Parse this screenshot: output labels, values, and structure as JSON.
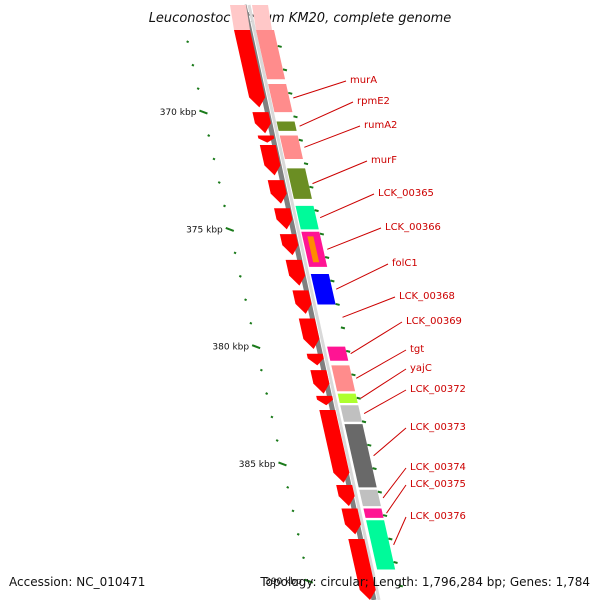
{
  "title": "Leuconostoc citreum KM20, complete genome",
  "footer": {
    "accession": "Accession: NC_010471",
    "summary": "Topology: circular; Length: 1,796,284 bp; Genes: 1,784"
  },
  "axis": {
    "range_kbp": [
      366.5,
      390.8
    ],
    "labels": [
      {
        "text": "370 kbp",
        "kbp": 370
      },
      {
        "text": "375 kbp",
        "kbp": 375
      },
      {
        "text": "380 kbp",
        "kbp": 380
      },
      {
        "text": "385 kbp",
        "kbp": 385
      },
      {
        "text": "390 kbp",
        "kbp": 390
      }
    ],
    "tick_color": "#1a7a1a"
  },
  "backbone_color": "#808080",
  "forward_strand_color": "#ff0000",
  "genes": [
    {
      "name": "murA",
      "start": 368.8,
      "end": 370.0,
      "color": "#ff8c8c"
    },
    {
      "name": "rpmE2",
      "start": 370.4,
      "end": 370.8,
      "color": "#6b8e23"
    },
    {
      "name": "rumA2",
      "start": 371.0,
      "end": 372.0,
      "color": "#ff8c8c"
    },
    {
      "name": "murF",
      "start": 372.4,
      "end": 373.7,
      "color": "#6b8e23"
    },
    {
      "name": "LCK_00365",
      "start": 374.0,
      "end": 375.0,
      "color": "#00fa9a"
    },
    {
      "name": "LCK_00366",
      "start": 375.1,
      "end": 376.6,
      "color": "#ff1493",
      "inner_color": "#ff8c00"
    },
    {
      "name": "folC1",
      "start": 376.9,
      "end": 378.2,
      "color": "#0000ff"
    },
    {
      "name": "LCK_00368",
      "start": 378.4,
      "end": 379.1,
      "color": "#ffffff"
    },
    {
      "name": "LCK_00369",
      "start": 380.0,
      "end": 380.6,
      "color": "#ff1493"
    },
    {
      "name": "tgt",
      "start": 380.8,
      "end": 381.9,
      "color": "#ff8c8c"
    },
    {
      "name": "yajC",
      "start": 382.0,
      "end": 382.4,
      "color": "#adff2f"
    },
    {
      "name": "LCK_00372",
      "start": 382.5,
      "end": 383.2,
      "color": "#c0c0c0"
    },
    {
      "name": "LCK_00373",
      "start": 383.3,
      "end": 386.0,
      "color": "#696969"
    },
    {
      "name": "LCK_00374",
      "start": 386.1,
      "end": 386.8,
      "color": "#c0c0c0"
    },
    {
      "name": "LCK_00375",
      "start": 386.9,
      "end": 387.3,
      "color": "#ff1493"
    },
    {
      "name": "LCK_00376",
      "start": 387.4,
      "end": 389.5,
      "color": "#00fa9a"
    }
  ],
  "forward_genes": [
    {
      "start": 366.5,
      "end": 369.8
    },
    {
      "start": 370.0,
      "end": 370.9
    },
    {
      "start": 371.0,
      "end": 371.3
    },
    {
      "start": 371.4,
      "end": 372.7
    },
    {
      "start": 372.9,
      "end": 373.9
    },
    {
      "start": 374.1,
      "end": 375.0
    },
    {
      "start": 375.2,
      "end": 376.1
    },
    {
      "start": 376.3,
      "end": 377.4
    },
    {
      "start": 377.6,
      "end": 378.6
    },
    {
      "start": 378.8,
      "end": 380.1
    },
    {
      "start": 380.3,
      "end": 380.8
    },
    {
      "start": 381.0,
      "end": 382.0
    },
    {
      "start": 382.1,
      "end": 382.5
    },
    {
      "start": 382.7,
      "end": 385.8
    },
    {
      "start": 385.9,
      "end": 386.8
    },
    {
      "start": 386.9,
      "end": 388.0
    },
    {
      "start": 388.2,
      "end": 390.8
    }
  ]
}
